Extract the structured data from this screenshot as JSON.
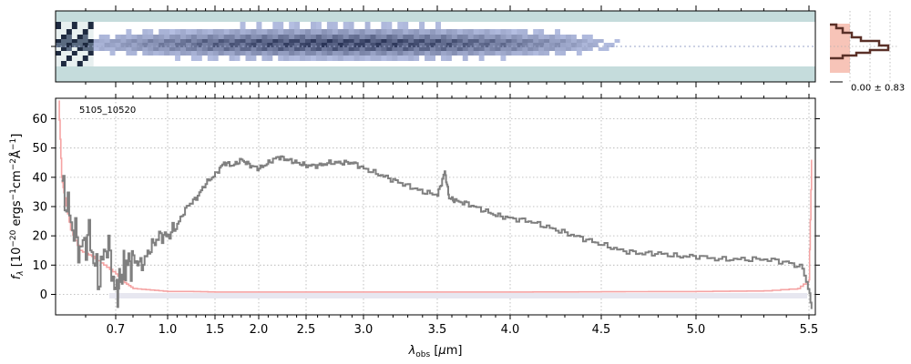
{
  "chart_data": {
    "type": "line",
    "object_id": "5105_10520",
    "xlabel": "λ_obs [μm]",
    "ylabel": "f_λ [10^-20 ergs^-1cm^-2Å^-1]",
    "xlim": [
      0.5,
      5.55
    ],
    "ylim": [
      -7,
      67
    ],
    "x_axis_scale": "nonlinear (roughly uniform in resolution elements; tick positions from the figure)",
    "x_tick_labels": [
      "0.7",
      "1.0",
      "1.5",
      "2.0",
      "2.5",
      "3.0",
      "3.5",
      "4.0",
      "4.5",
      "5.0",
      "5.5"
    ],
    "y_ticks": [
      0,
      10,
      20,
      30,
      40,
      50,
      60
    ],
    "grid": true,
    "side_panel_label": "0.00 ± 0.83",
    "colors": {
      "flux": "#808080",
      "error": "#f5a3a3",
      "cont_band": "#e7e7f0",
      "spectrum2d_bg": "#c5dcdc",
      "profile": "#5a3028",
      "profile_fill": "#f7c4b8"
    },
    "series": [
      {
        "role": "flux",
        "x": [
          0.52,
          0.55,
          0.58,
          0.61,
          0.64,
          0.67,
          0.7,
          0.73,
          0.76,
          0.8,
          0.85,
          0.9,
          0.95,
          1.0,
          1.1,
          1.2,
          1.3,
          1.4,
          1.5,
          1.6,
          1.7,
          1.8,
          1.9,
          2.0,
          2.1,
          2.2,
          2.3,
          2.4,
          2.5,
          2.6,
          2.7,
          2.8,
          2.9,
          3.0,
          3.1,
          3.2,
          3.3,
          3.4,
          3.5,
          3.55,
          3.58,
          3.62,
          3.7,
          3.8,
          3.9,
          4.0,
          4.1,
          4.2,
          4.3,
          4.4,
          4.5,
          4.6,
          4.7,
          4.8,
          4.9,
          5.0,
          5.1,
          5.2,
          5.3,
          5.4,
          5.47,
          5.52
        ],
        "y": [
          38,
          25,
          15,
          20,
          5,
          18,
          0,
          6,
          10,
          12,
          10,
          16,
          20,
          20,
          24,
          30,
          33,
          38,
          41,
          45,
          44,
          46,
          44,
          43,
          45,
          47,
          46,
          45,
          44,
          44,
          45,
          45,
          45,
          43,
          41,
          39,
          37,
          35,
          34,
          42,
          33,
          32,
          31,
          29,
          27,
          26,
          25,
          23,
          21,
          19,
          17,
          15,
          14,
          14,
          13,
          13,
          12,
          12,
          12,
          11,
          9,
          -5
        ]
      },
      {
        "role": "error",
        "x": [
          0.51,
          0.52,
          0.53,
          0.55,
          0.58,
          0.62,
          0.66,
          0.7,
          0.75,
          0.8,
          0.9,
          1.0,
          1.2,
          1.5,
          2.0,
          2.5,
          3.0,
          3.5,
          4.0,
          4.5,
          5.0,
          5.3,
          5.45,
          5.5,
          5.52
        ],
        "y": [
          66,
          40,
          33,
          22,
          15,
          13,
          10,
          7,
          4,
          2,
          1.5,
          1,
          1,
          0.8,
          0.8,
          0.8,
          0.8,
          0.8,
          0.8,
          0.9,
          1,
          1.2,
          2,
          5,
          46
        ]
      }
    ]
  }
}
